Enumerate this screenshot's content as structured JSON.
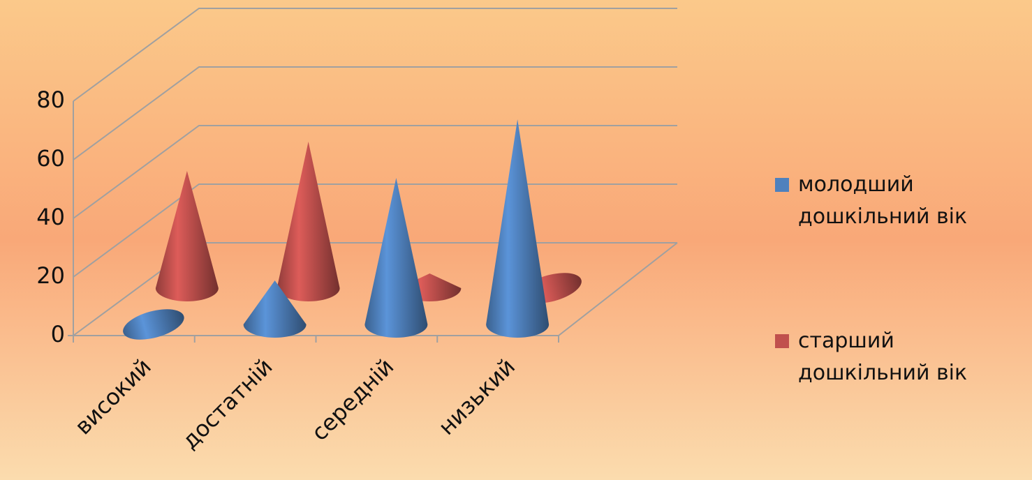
{
  "chart_data": {
    "type": "cone3d",
    "categories": [
      "високий",
      "достатній",
      "середній",
      "низький"
    ],
    "series": [
      {
        "name": "молодший дошкільний вік",
        "color": "#4f81bd",
        "values": [
          0,
          15,
          50,
          70
        ]
      },
      {
        "name": "старший дошкільний вік",
        "color": "#c0504d",
        "values": [
          40,
          50,
          5,
          0
        ]
      }
    ],
    "ylim": [
      0,
      80
    ],
    "yticks": [
      0,
      20,
      40,
      60,
      80
    ],
    "grid": true,
    "legend": "right"
  }
}
